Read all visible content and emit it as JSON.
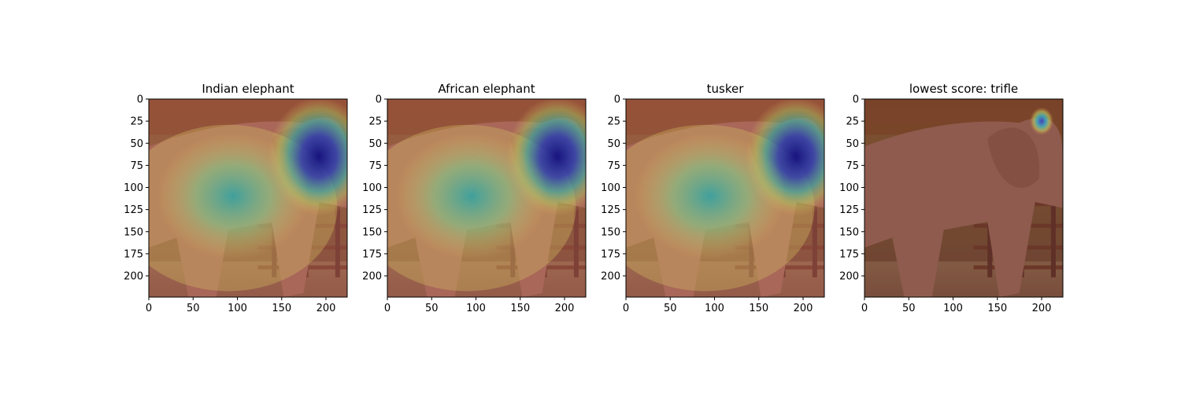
{
  "figure": {
    "panels": [
      {
        "title": "Indian elephant",
        "heatmap": "broad"
      },
      {
        "title": "African elephant",
        "heatmap": "broad"
      },
      {
        "title": "tusker",
        "heatmap": "broad"
      },
      {
        "title": "lowest score: trifle",
        "heatmap": "spot"
      }
    ]
  },
  "chart_data": [
    {
      "type": "heatmap",
      "title": "Indian elephant",
      "xticks": [
        0,
        50,
        100,
        150,
        200
      ],
      "yticks": [
        0,
        25,
        50,
        75,
        100,
        125,
        150,
        175,
        200
      ],
      "xlim": [
        0,
        224
      ],
      "ylim": [
        224,
        0
      ],
      "hotspots": [
        {
          "x": 192,
          "y": 65,
          "intensity": 1.0,
          "color": "#1a1a9e"
        },
        {
          "x": 95,
          "y": 110,
          "intensity": 0.7,
          "color": "#2aa0a0"
        }
      ]
    },
    {
      "type": "heatmap",
      "title": "African elephant",
      "xticks": [
        0,
        50,
        100,
        150,
        200
      ],
      "yticks": [
        0,
        25,
        50,
        75,
        100,
        125,
        150,
        175,
        200
      ],
      "xlim": [
        0,
        224
      ],
      "ylim": [
        224,
        0
      ],
      "hotspots": [
        {
          "x": 192,
          "y": 65,
          "intensity": 1.0,
          "color": "#1a1a9e"
        },
        {
          "x": 95,
          "y": 110,
          "intensity": 0.7,
          "color": "#2aa0a0"
        }
      ]
    },
    {
      "type": "heatmap",
      "title": "tusker",
      "xticks": [
        0,
        50,
        100,
        150,
        200
      ],
      "yticks": [
        0,
        25,
        50,
        75,
        100,
        125,
        150,
        175,
        200
      ],
      "xlim": [
        0,
        224
      ],
      "ylim": [
        224,
        0
      ],
      "hotspots": [
        {
          "x": 192,
          "y": 65,
          "intensity": 1.0,
          "color": "#1a1a9e"
        },
        {
          "x": 95,
          "y": 110,
          "intensity": 0.7,
          "color": "#2aa0a0"
        }
      ]
    },
    {
      "type": "heatmap",
      "title": "lowest score: trifle",
      "xticks": [
        0,
        50,
        100,
        150,
        200
      ],
      "yticks": [
        0,
        25,
        50,
        75,
        100,
        125,
        150,
        175,
        200
      ],
      "xlim": [
        0,
        224
      ],
      "ylim": [
        224,
        0
      ],
      "hotspots": [
        {
          "x": 200,
          "y": 25,
          "intensity": 1.0,
          "color": "#4b58c8"
        }
      ]
    }
  ]
}
